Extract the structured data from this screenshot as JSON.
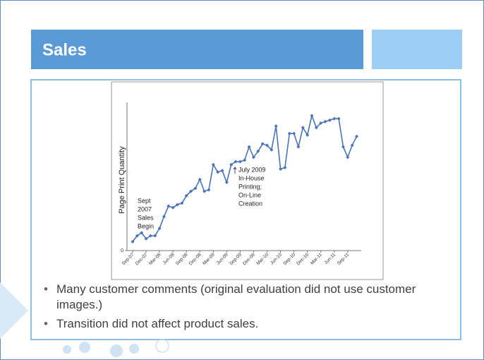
{
  "slide": {
    "title": "Sales",
    "bullets": [
      "Many customer comments (original evaluation did not use customer images.)",
      "Transition did not affect product sales."
    ]
  },
  "chart_data": {
    "type": "line",
    "y_label": "Page Print Quantity",
    "categories": [
      "Sep-07",
      null,
      null,
      "Dec-07",
      null,
      null,
      "Mar-08",
      null,
      null,
      "Jun-08",
      null,
      null,
      "Sep-08",
      null,
      null,
      "Dec-08",
      null,
      null,
      "Mar-09",
      null,
      null,
      "Jun-09",
      null,
      null,
      "Sep-09",
      null,
      null,
      "Dec-09",
      null,
      null,
      "Mar-10",
      null,
      null,
      "Jun-10",
      null,
      null,
      "Sep-10",
      null,
      null,
      "Dec-10",
      null,
      null,
      "Mar-11",
      null,
      null,
      "Jun-11",
      null,
      null,
      "Sep-11",
      null,
      null
    ],
    "values": [
      6,
      10,
      12,
      8,
      10,
      10,
      15,
      23,
      30,
      29,
      31,
      32,
      37,
      40,
      42,
      48,
      40,
      41,
      58,
      53,
      54,
      46,
      58,
      60,
      60,
      61,
      70,
      63,
      67,
      72,
      71,
      68,
      84,
      55,
      56,
      79,
      79,
      70,
      83,
      78,
      91,
      83,
      86,
      87,
      88,
      89,
      89,
      70,
      63,
      71,
      77
    ],
    "color": "#4a74b5",
    "ylim": [
      0,
      100
    ],
    "yticks": [
      0
    ],
    "annotations": [
      {
        "lines": [
          "Sept",
          "2007",
          "Sales",
          "Begin"
        ]
      },
      {
        "lines": [
          "July 2009",
          "In-House",
          "Printing;",
          "On-Line",
          "Creation"
        ]
      }
    ]
  }
}
